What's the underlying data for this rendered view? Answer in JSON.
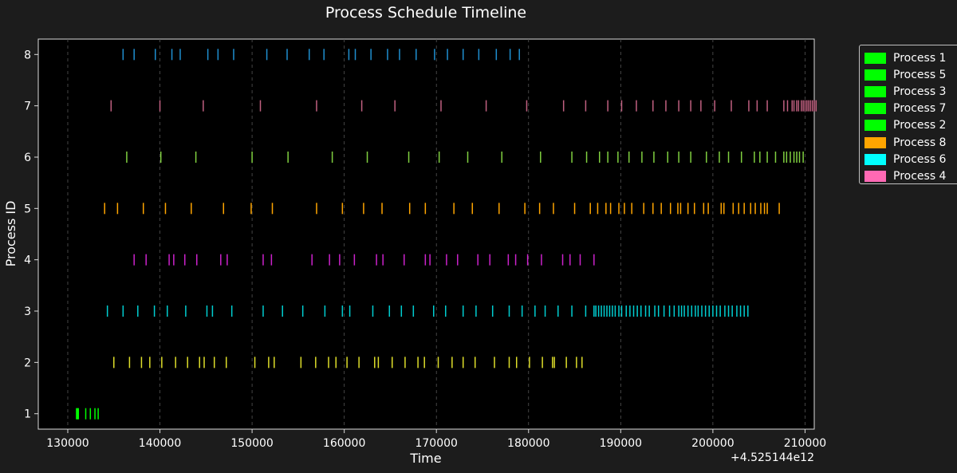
{
  "chart_data": {
    "type": "timeline",
    "title": "Process Schedule Timeline",
    "xlabel": "Time",
    "ylabel": "Process ID",
    "x_offset_label": "+4.525144e12",
    "x_offset": 4525144000000,
    "xlim": [
      126800,
      211000
    ],
    "ylim": [
      0.7,
      8.3
    ],
    "x_ticks": [
      130000,
      140000,
      150000,
      160000,
      170000,
      180000,
      190000,
      200000,
      210000
    ],
    "x_tick_labels": [
      "130000",
      "140000",
      "150000",
      "160000",
      "170000",
      "180000",
      "190000",
      "200000",
      "210000"
    ],
    "y_ticks": [
      1,
      2,
      3,
      4,
      5,
      6,
      7,
      8
    ],
    "y_tick_labels": [
      "1",
      "2",
      "3",
      "4",
      "5",
      "6",
      "7",
      "8"
    ],
    "grid": "x dashed",
    "legend_position": "outside right, top",
    "legend": [
      {
        "label": "Process 1",
        "color": "#00ff00"
      },
      {
        "label": "Process 5",
        "color": "#00ff00"
      },
      {
        "label": "Process 3",
        "color": "#00ff00"
      },
      {
        "label": "Process 7",
        "color": "#00ff00"
      },
      {
        "label": "Process 2",
        "color": "#00ff00"
      },
      {
        "label": "Process 8",
        "color": "#ffa500"
      },
      {
        "label": "Process 6",
        "color": "#00ffff"
      },
      {
        "label": "Process 4",
        "color": "#ff69b4"
      }
    ],
    "series": [
      {
        "y": 1,
        "color": "#00ff00",
        "x": [
          130950,
          131050,
          131150,
          131950,
          132450,
          132950,
          133300
        ]
      },
      {
        "y": 2,
        "color": "#dede2a",
        "x": [
          135000,
          136700,
          138000,
          138900,
          140200,
          141700,
          143000,
          144300,
          144800,
          145900,
          147200,
          150300,
          151800,
          152400,
          155300,
          156900,
          158300,
          159100,
          160300,
          161600,
          163300,
          163700,
          165200,
          166600,
          168000,
          168700,
          170200,
          171700,
          172900,
          174200,
          176300,
          177900,
          178700,
          180100,
          181500,
          182600,
          182800,
          184100,
          185200,
          185800
        ]
      },
      {
        "y": 3,
        "color": "#00ced1",
        "x": [
          134300,
          136000,
          137600,
          139400,
          140800,
          142800,
          145100,
          145700,
          147800,
          151200,
          153300,
          155500,
          157900,
          159800,
          160600,
          163100,
          164900,
          166200,
          167500,
          169700,
          171000,
          172900,
          174300,
          176100,
          177900,
          179300,
          180700,
          181800,
          183200,
          184700,
          186200,
          187100,
          187300,
          187600,
          187900,
          188200,
          188500,
          188800,
          189100,
          189400,
          189800,
          190100,
          190600,
          191000,
          191400,
          191800,
          192200,
          192700,
          193100,
          193700,
          194100,
          194700,
          195300,
          195800,
          196300,
          196600,
          196900,
          197300,
          197700,
          198100,
          198400,
          198800,
          199200,
          199600,
          200000,
          200400,
          200800,
          201300,
          201700,
          202100,
          202600,
          203000,
          203400,
          203800
        ]
      },
      {
        "y": 4,
        "color": "#cc22cc",
        "x": [
          137200,
          138500,
          141000,
          141500,
          142700,
          144000,
          146600,
          147300,
          151200,
          152100,
          156500,
          158400,
          159500,
          161100,
          163500,
          164200,
          166500,
          168800,
          169300,
          171100,
          172300,
          174500,
          175800,
          177800,
          178600,
          179900,
          181400,
          183700,
          184500,
          185600,
          187100
        ]
      },
      {
        "y": 5,
        "color": "#ffa500",
        "x": [
          134000,
          135400,
          138200,
          140600,
          143400,
          146900,
          149900,
          152200,
          157000,
          159800,
          162100,
          164100,
          167100,
          168800,
          171900,
          173900,
          176800,
          179600,
          181200,
          182700,
          185000,
          186700,
          187500,
          188400,
          188900,
          189800,
          190400,
          191200,
          192500,
          193500,
          194400,
          195400,
          196200,
          196500,
          197300,
          198000,
          199000,
          199500,
          200900,
          201200,
          202200,
          202800,
          203400,
          204100,
          204600,
          205200,
          205600,
          205900,
          207200
        ]
      },
      {
        "y": 6,
        "color": "#80d040",
        "x": [
          136400,
          140100,
          143900,
          150000,
          153900,
          158700,
          162500,
          167000,
          170300,
          173400,
          177100,
          181300,
          184700,
          186300,
          187700,
          188600,
          189700,
          190900,
          192300,
          193600,
          195100,
          196300,
          197600,
          199300,
          200700,
          201700,
          203100,
          204500,
          205100,
          205900,
          206800,
          207700,
          208000,
          208400,
          208800,
          209100,
          209400,
          209800
        ]
      },
      {
        "y": 7,
        "color": "#c06080",
        "x": [
          134700,
          140000,
          144700,
          150900,
          157000,
          161900,
          165500,
          170500,
          175400,
          179800,
          183800,
          186200,
          188600,
          190100,
          191700,
          193500,
          194900,
          196300,
          197600,
          198700,
          200200,
          202000,
          203900,
          204800,
          205900,
          207700,
          208100,
          208600,
          208800,
          209100,
          209300,
          209600,
          209800,
          210000,
          210200,
          210400,
          210600,
          210800,
          211000,
          211200
        ]
      },
      {
        "y": 8,
        "color": "#1f8fd0",
        "x": [
          136000,
          137200,
          139500,
          141300,
          142200,
          145200,
          146300,
          148000,
          151600,
          153800,
          156200,
          157800,
          160500,
          161200,
          162900,
          164700,
          166000,
          167800,
          169800,
          171200,
          172900,
          174600,
          176500,
          178000,
          179000
        ]
      }
    ]
  }
}
